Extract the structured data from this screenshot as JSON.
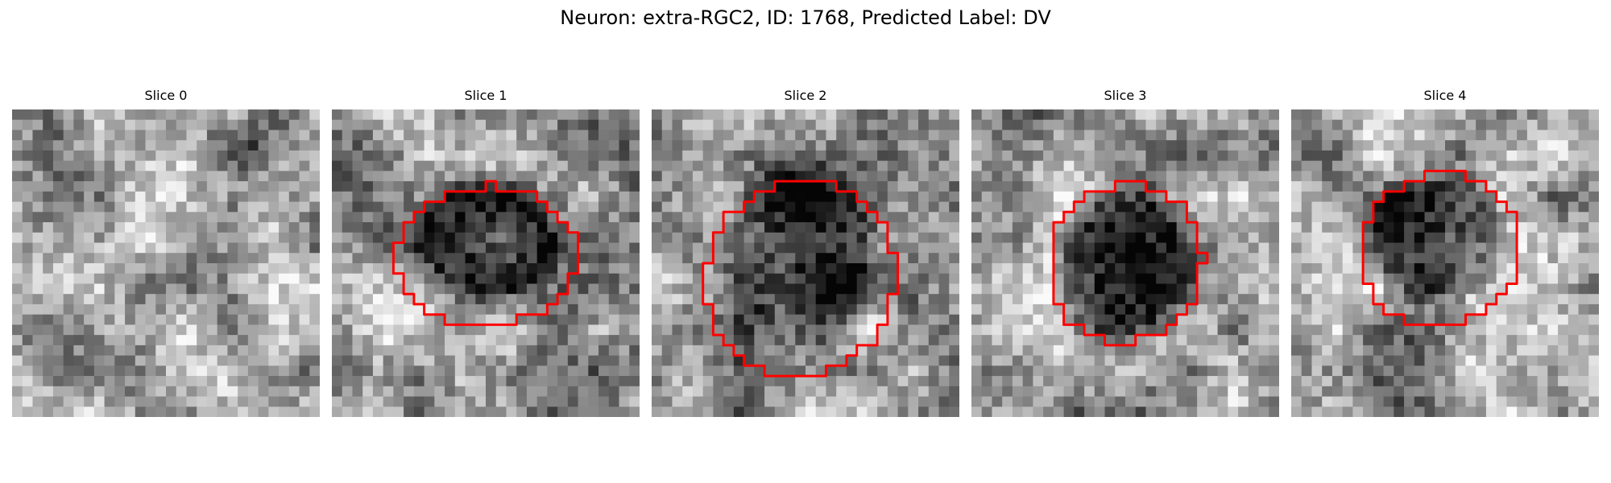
{
  "figure": {
    "title": "Neuron: extra-RGC2, ID: 1768, Predicted Label: DV"
  },
  "panels": [
    {
      "label": "Slice 0",
      "has_contour": false
    },
    {
      "label": "Slice 1",
      "has_contour": true
    },
    {
      "label": "Slice 2",
      "has_contour": true
    },
    {
      "label": "Slice 3",
      "has_contour": true
    },
    {
      "label": "Slice 4",
      "has_contour": true
    }
  ],
  "colors": {
    "contour": "#ff0000",
    "background": "#ffffff"
  },
  "image": {
    "colormap": "grayscale"
  }
}
